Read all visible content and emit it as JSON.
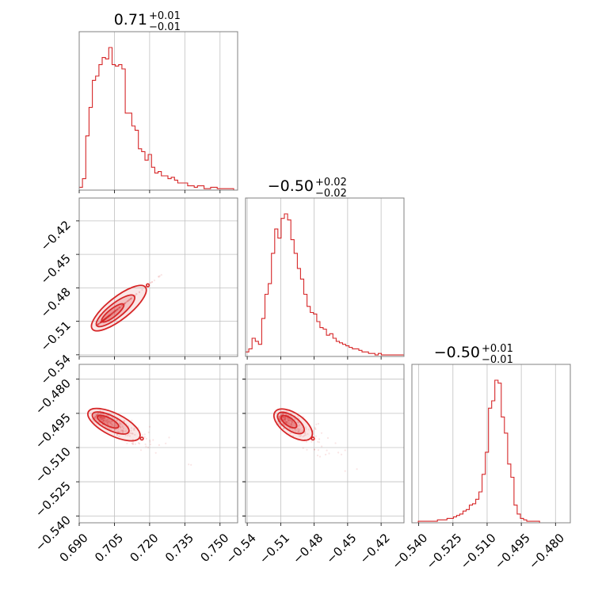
{
  "chart_data": {
    "type": "corner",
    "color": "#d62728",
    "grid": true,
    "parameters": [
      {
        "title": {
          "median": "0.71",
          "plus": "+0.01",
          "minus": "−0.01"
        },
        "range": [
          0.69,
          0.7575
        ],
        "ticks": [
          0.69,
          0.705,
          0.72,
          0.735,
          0.75
        ],
        "tick_labels": [
          "0.690",
          "0.705",
          "0.720",
          "0.735",
          "0.750"
        ]
      },
      {
        "title": {
          "median": "−0.50",
          "plus": "+0.02",
          "minus": "−0.02"
        },
        "range": [
          -0.5415,
          -0.3995
        ],
        "ticks": [
          -0.54,
          -0.51,
          -0.48,
          -0.45,
          -0.42
        ],
        "tick_labels": [
          "−0.54",
          "−0.51",
          "−0.48",
          "−0.45",
          "−0.42"
        ]
      },
      {
        "title": {
          "median": "−0.50",
          "plus": "+0.01",
          "minus": "−0.01"
        },
        "range": [
          -0.543,
          -0.4735
        ],
        "ticks": [
          -0.54,
          -0.525,
          -0.51,
          -0.495,
          -0.48
        ],
        "tick_labels": [
          "−0.540",
          "−0.525",
          "−0.510",
          "−0.495",
          "−0.480"
        ]
      }
    ],
    "histograms": [
      {
        "bin_start": 0.69,
        "bin_width": 0.0014,
        "counts": [
          2,
          8,
          38,
          58,
          77,
          80,
          88,
          93,
          92,
          100,
          88,
          87,
          88,
          85,
          54,
          54,
          45,
          42,
          29,
          27,
          21,
          25,
          16,
          12,
          13,
          10,
          10,
          8,
          9,
          7,
          5,
          5,
          5,
          3,
          3,
          2,
          3,
          3,
          1,
          1,
          2,
          2,
          1,
          1,
          1,
          1,
          1,
          0
        ]
      },
      {
        "bin_start": -0.5415,
        "bin_width": 0.0029,
        "counts": [
          3,
          5,
          12,
          10,
          8,
          25,
          41,
          48,
          68,
          84,
          78,
          91,
          94,
          90,
          77,
          68,
          58,
          51,
          41,
          33,
          29,
          28,
          23,
          19,
          18,
          14,
          15,
          12,
          10,
          9,
          8,
          7,
          6,
          5,
          5,
          4,
          3,
          3,
          2,
          2,
          1,
          2,
          1,
          1,
          1,
          1,
          1,
          1,
          1
        ]
      },
      {
        "bin_start": -0.543,
        "bin_width": 0.0014,
        "counts": [
          0,
          0,
          1,
          1,
          1,
          1,
          1,
          1,
          2,
          2,
          2,
          3,
          3,
          4,
          5,
          6,
          8,
          9,
          12,
          13,
          16,
          21,
          33,
          48,
          78,
          83,
          97,
          95,
          72,
          61,
          40,
          31,
          12,
          6,
          3,
          2,
          1,
          1,
          1,
          1,
          0,
          0,
          0,
          0,
          0,
          0,
          0,
          0,
          0
        ]
      }
    ],
    "pairs": [
      {
        "x_param": 0,
        "y_param": 1,
        "center": [
          0.704,
          -0.503
        ],
        "axis": [
          0.0145,
          0.0241
        ],
        "width": 0.0014,
        "tilt": 0.35
      },
      {
        "x_param": 0,
        "y_param": 2,
        "center": [
          0.702,
          -0.4985
        ],
        "axis": [
          0.014,
          -0.0072
        ],
        "width": 0.0014,
        "tilt": 0.5
      },
      {
        "x_param": 1,
        "y_param": 2,
        "center": [
          -0.503,
          -0.4985
        ],
        "axis": [
          0.0208,
          -0.0072
        ],
        "width": 0.0016,
        "tilt": 0.5
      }
    ]
  }
}
